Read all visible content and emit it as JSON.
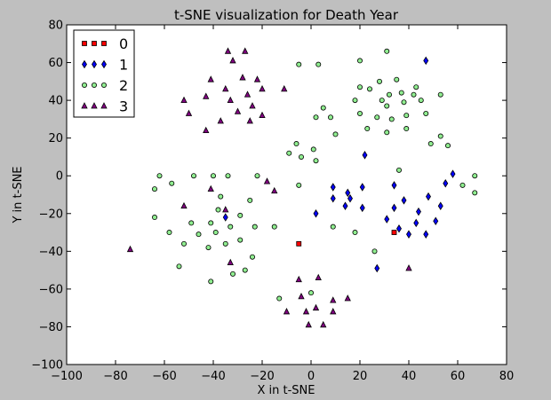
{
  "chart_data": {
    "type": "scatter",
    "title": "t-SNE visualization for Death Year",
    "xlabel": "X in t-SNE",
    "ylabel": "Y in t-SNE",
    "xlim": [
      -100,
      80
    ],
    "ylim": [
      -100,
      80
    ],
    "xticks": [
      -100,
      -80,
      -60,
      -40,
      -20,
      0,
      20,
      40,
      60,
      80
    ],
    "yticks": [
      -100,
      -80,
      -60,
      -40,
      -20,
      0,
      20,
      40,
      60,
      80
    ],
    "grid": false,
    "legend_position": "top-left",
    "series": [
      {
        "name": "0",
        "marker": "square",
        "color": "#ff0000",
        "points": [
          [
            -5,
            -36
          ],
          [
            34,
            -30
          ]
        ]
      },
      {
        "name": "1",
        "marker": "diamond",
        "color": "#0000ff",
        "points": [
          [
            47,
            61
          ],
          [
            22,
            11
          ],
          [
            58,
            1
          ],
          [
            55,
            -4
          ],
          [
            34,
            -5
          ],
          [
            9,
            -6
          ],
          [
            21,
            -6
          ],
          [
            15,
            -9
          ],
          [
            48,
            -11
          ],
          [
            9,
            -12
          ],
          [
            16,
            -12
          ],
          [
            38,
            -13
          ],
          [
            34,
            -17
          ],
          [
            53,
            -16
          ],
          [
            14,
            -16
          ],
          [
            21,
            -17
          ],
          [
            44,
            -19
          ],
          [
            2,
            -20
          ],
          [
            31,
            -23
          ],
          [
            51,
            -24
          ],
          [
            43,
            -25
          ],
          [
            36,
            -28
          ],
          [
            40,
            -31
          ],
          [
            47,
            -31
          ],
          [
            27,
            -49
          ],
          [
            -35,
            -22
          ]
        ]
      },
      {
        "name": "2",
        "marker": "circle",
        "color": "#90ee90",
        "points": [
          [
            -5,
            59
          ],
          [
            3,
            59
          ],
          [
            20,
            61
          ],
          [
            31,
            66
          ],
          [
            28,
            50
          ],
          [
            35,
            51
          ],
          [
            20,
            47
          ],
          [
            24,
            46
          ],
          [
            32,
            43
          ],
          [
            37,
            44
          ],
          [
            42,
            43
          ],
          [
            43,
            47
          ],
          [
            53,
            43
          ],
          [
            29,
            40
          ],
          [
            31,
            37
          ],
          [
            38,
            39
          ],
          [
            45,
            40
          ],
          [
            5,
            36
          ],
          [
            18,
            40
          ],
          [
            20,
            33
          ],
          [
            27,
            31
          ],
          [
            33,
            30
          ],
          [
            39,
            32
          ],
          [
            47,
            33
          ],
          [
            2,
            31
          ],
          [
            8,
            31
          ],
          [
            23,
            25
          ],
          [
            31,
            23
          ],
          [
            39,
            25
          ],
          [
            53,
            21
          ],
          [
            49,
            17
          ],
          [
            56,
            16
          ],
          [
            10,
            22
          ],
          [
            -6,
            17
          ],
          [
            1,
            14
          ],
          [
            -9,
            12
          ],
          [
            -4,
            10
          ],
          [
            2,
            8
          ],
          [
            36,
            3
          ],
          [
            -62,
            0
          ],
          [
            -48,
            0
          ],
          [
            -40,
            0
          ],
          [
            -34,
            0
          ],
          [
            -22,
            0
          ],
          [
            -57,
            -4
          ],
          [
            -5,
            -5
          ],
          [
            -64,
            -7
          ],
          [
            -37,
            -11
          ],
          [
            -25,
            -13
          ],
          [
            -38,
            -18
          ],
          [
            -29,
            -21
          ],
          [
            -64,
            -22
          ],
          [
            -49,
            -25
          ],
          [
            -41,
            -25
          ],
          [
            -15,
            -27
          ],
          [
            -33,
            -27
          ],
          [
            -23,
            -27
          ],
          [
            -58,
            -30
          ],
          [
            -39,
            -30
          ],
          [
            -46,
            -31
          ],
          [
            -29,
            -34
          ],
          [
            -52,
            -36
          ],
          [
            -35,
            -36
          ],
          [
            -42,
            -38
          ],
          [
            18,
            -30
          ],
          [
            9,
            -27
          ],
          [
            26,
            -40
          ],
          [
            -24,
            -43
          ],
          [
            -54,
            -48
          ],
          [
            -27,
            -50
          ],
          [
            -32,
            -52
          ],
          [
            -41,
            -56
          ],
          [
            -13,
            -65
          ],
          [
            0,
            -62
          ],
          [
            62,
            -5
          ],
          [
            67,
            0
          ],
          [
            67,
            -9
          ]
        ]
      },
      {
        "name": "3",
        "marker": "triangle",
        "color": "#800080",
        "points": [
          [
            -34,
            66
          ],
          [
            -27,
            66
          ],
          [
            -32,
            61
          ],
          [
            -41,
            51
          ],
          [
            -22,
            51
          ],
          [
            -28,
            52
          ],
          [
            -35,
            46
          ],
          [
            -20,
            46
          ],
          [
            -43,
            42
          ],
          [
            -26,
            43
          ],
          [
            -52,
            40
          ],
          [
            -33,
            40
          ],
          [
            -24,
            37
          ],
          [
            -30,
            34
          ],
          [
            -50,
            33
          ],
          [
            -20,
            32
          ],
          [
            -37,
            29
          ],
          [
            -25,
            29
          ],
          [
            -43,
            24
          ],
          [
            -11,
            46
          ],
          [
            -18,
            -3
          ],
          [
            -15,
            -8
          ],
          [
            -41,
            -7
          ],
          [
            -52,
            -16
          ],
          [
            -35,
            -18
          ],
          [
            -74,
            -39
          ],
          [
            -33,
            -46
          ],
          [
            40,
            -49
          ],
          [
            -5,
            -55
          ],
          [
            3,
            -54
          ],
          [
            -4,
            -64
          ],
          [
            15,
            -65
          ],
          [
            -10,
            -72
          ],
          [
            -2,
            -72
          ],
          [
            9,
            -66
          ],
          [
            2,
            -70
          ],
          [
            9,
            -72
          ],
          [
            -1,
            -79
          ],
          [
            5,
            -79
          ]
        ]
      }
    ]
  }
}
